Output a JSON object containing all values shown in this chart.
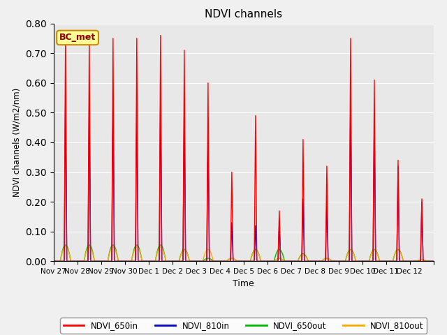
{
  "title": "NDVI channels",
  "xlabel": "Time",
  "ylabel": "NDVI channels (W/m2/nm)",
  "ylim": [
    0.0,
    0.8
  ],
  "yticks": [
    0.0,
    0.1,
    0.2,
    0.3,
    0.4,
    0.5,
    0.6,
    0.7,
    0.8
  ],
  "fig_bg_color": "#f0f0f0",
  "ax_bg_color": "#e8e8e8",
  "annotation_text": "BC_met",
  "annotation_bg": "#ffff99",
  "annotation_border": "#cc8800",
  "series": {
    "NDVI_650in": {
      "color": "#ff0000",
      "label": "NDVI_650in"
    },
    "NDVI_810in": {
      "color": "#0000cc",
      "label": "NDVI_810in"
    },
    "NDVI_650out": {
      "color": "#00bb00",
      "label": "NDVI_650out"
    },
    "NDVI_810out": {
      "color": "#ffaa00",
      "label": "NDVI_810out"
    }
  },
  "days": [
    "Nov 27",
    "Nov 28",
    "Nov 29",
    "Nov 30",
    "Dec 1",
    "Dec 2",
    "Dec 3",
    "Dec 4",
    "Dec 5",
    "Dec 6",
    "Dec 7",
    "Dec 8",
    "Dec 9",
    "Dec 10",
    "Dec 11",
    "Dec 12"
  ],
  "peaks_650in": [
    0.77,
    0.75,
    0.75,
    0.75,
    0.76,
    0.71,
    0.6,
    0.3,
    0.49,
    0.17,
    0.41,
    0.32,
    0.75,
    0.61,
    0.34,
    0.21
  ],
  "peaks_810in": [
    0.57,
    0.56,
    0.56,
    0.56,
    0.57,
    0.54,
    0.45,
    0.13,
    0.12,
    0.13,
    0.21,
    0.2,
    0.57,
    0.49,
    0.32,
    0.2
  ],
  "peaks_650out": [
    0.055,
    0.055,
    0.055,
    0.055,
    0.055,
    0.04,
    0.01,
    0.01,
    0.04,
    0.04,
    0.025,
    0.01,
    0.04,
    0.04,
    0.04,
    0.005
  ],
  "peaks_810out": [
    0.05,
    0.048,
    0.048,
    0.048,
    0.048,
    0.038,
    0.04,
    0.01,
    0.038,
    0.01,
    0.022,
    0.01,
    0.038,
    0.038,
    0.038,
    0.005
  ]
}
